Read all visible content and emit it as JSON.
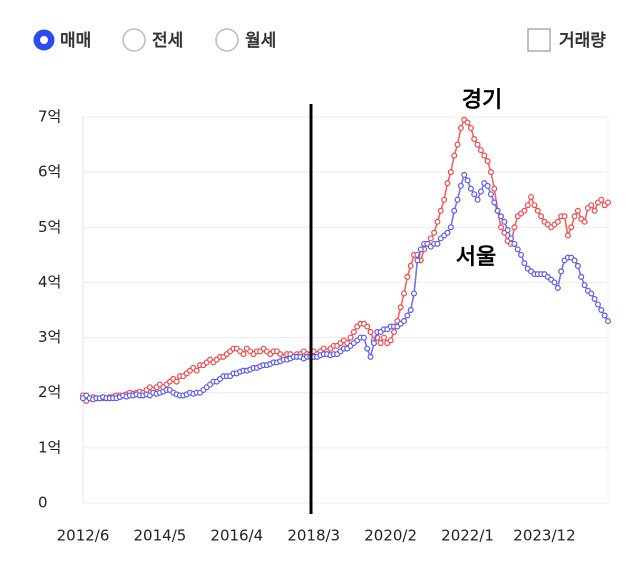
{
  "controls": {
    "radios": [
      "매매",
      "전세",
      "월세"
    ],
    "checkbox": "거래량"
  },
  "chart_data": {
    "type": "line",
    "categories": [
      "2012/6",
      null,
      null,
      null,
      null,
      null,
      null,
      null,
      null,
      null,
      null,
      null,
      null,
      null,
      null,
      null,
      null,
      null,
      null,
      null,
      null,
      null,
      null,
      "2014/5",
      null,
      null,
      null,
      null,
      null,
      null,
      null,
      null,
      null,
      null,
      null,
      null,
      null,
      null,
      null,
      null,
      null,
      null,
      null,
      null,
      null,
      null,
      "2016/4",
      null,
      null,
      null,
      null,
      null,
      null,
      null,
      null,
      null,
      null,
      null,
      null,
      null,
      null,
      null,
      null,
      null,
      null,
      null,
      null,
      null,
      null,
      "2018/3",
      null,
      null,
      null,
      null,
      null,
      null,
      null,
      null,
      null,
      null,
      null,
      null,
      null,
      null,
      null,
      null,
      null,
      null,
      null,
      null,
      null,
      null,
      "2020/2",
      null,
      null,
      null,
      null,
      null,
      null,
      null,
      null,
      null,
      null,
      null,
      null,
      null,
      null,
      null,
      null,
      null,
      null,
      null,
      null,
      null,
      null,
      "2022/1",
      null,
      null,
      null,
      null,
      null,
      null,
      null,
      null,
      null,
      null,
      null,
      null,
      null,
      null,
      null,
      null,
      null,
      null,
      null,
      null,
      null,
      null,
      "2023/12",
      null,
      null,
      null,
      null,
      null,
      null,
      null,
      null,
      null,
      null,
      null,
      null,
      null,
      null,
      null,
      null,
      null,
      null,
      null
    ],
    "series": [
      {
        "name": "경기",
        "color": "#f04848",
        "values": [
          1.95,
          1.85,
          1.9,
          1.92,
          1.9,
          1.9,
          1.9,
          1.9,
          1.92,
          1.93,
          1.95,
          1.95,
          1.95,
          1.97,
          2.0,
          1.98,
          2.0,
          2.02,
          2.0,
          2.05,
          2.1,
          2.05,
          2.1,
          2.15,
          2.1,
          2.15,
          2.2,
          2.25,
          2.2,
          2.3,
          2.3,
          2.35,
          2.4,
          2.45,
          2.4,
          2.5,
          2.5,
          2.55,
          2.6,
          2.55,
          2.6,
          2.65,
          2.65,
          2.7,
          2.75,
          2.8,
          2.8,
          2.75,
          2.7,
          2.8,
          2.75,
          2.7,
          2.75,
          2.75,
          2.8,
          2.75,
          2.7,
          2.75,
          2.75,
          2.7,
          2.65,
          2.7,
          2.7,
          2.65,
          2.7,
          2.7,
          2.75,
          2.7,
          2.7,
          2.75,
          2.7,
          2.75,
          2.8,
          2.75,
          2.8,
          2.85,
          2.85,
          2.9,
          2.95,
          2.9,
          3.0,
          3.1,
          3.2,
          3.25,
          3.25,
          3.2,
          3.1,
          2.95,
          3.0,
          2.9,
          3.0,
          2.9,
          2.95,
          3.1,
          3.3,
          3.55,
          3.8,
          4.1,
          4.3,
          4.5,
          4.5,
          4.4,
          4.6,
          4.7,
          4.8,
          4.9,
          5.1,
          5.3,
          5.5,
          5.8,
          6.0,
          6.3,
          6.5,
          6.8,
          6.95,
          6.9,
          6.8,
          6.6,
          6.5,
          6.4,
          6.3,
          6.2,
          6.0,
          5.7,
          5.3,
          5.0,
          4.9,
          4.75,
          4.7,
          5.0,
          5.2,
          5.25,
          5.3,
          5.4,
          5.55,
          5.4,
          5.3,
          5.2,
          5.1,
          5.05,
          5.0,
          5.05,
          5.1,
          5.2,
          5.2,
          4.85,
          5.0,
          5.2,
          5.3,
          5.15,
          5.1,
          5.35,
          5.4,
          5.3,
          5.45,
          5.5,
          5.4,
          5.45
        ]
      },
      {
        "name": "서울",
        "color": "#5a5af0",
        "values": [
          1.9,
          1.95,
          1.9,
          1.88,
          1.9,
          1.9,
          1.92,
          1.9,
          1.9,
          1.9,
          1.9,
          1.92,
          1.95,
          1.93,
          1.95,
          1.95,
          1.97,
          1.95,
          1.95,
          1.97,
          1.95,
          2.0,
          1.98,
          2.0,
          2.02,
          2.05,
          2.05,
          2.0,
          1.97,
          1.95,
          1.95,
          1.97,
          2.0,
          1.98,
          2.0,
          2.0,
          2.05,
          2.1,
          2.15,
          2.2,
          2.2,
          2.25,
          2.3,
          2.3,
          2.3,
          2.35,
          2.35,
          2.38,
          2.4,
          2.4,
          2.42,
          2.45,
          2.45,
          2.48,
          2.5,
          2.5,
          2.52,
          2.55,
          2.55,
          2.57,
          2.6,
          2.6,
          2.62,
          2.65,
          2.65,
          2.65,
          2.62,
          2.65,
          2.65,
          2.65,
          2.65,
          2.68,
          2.7,
          2.7,
          2.68,
          2.7,
          2.7,
          2.75,
          2.8,
          2.8,
          2.85,
          2.9,
          2.95,
          3.0,
          3.0,
          2.8,
          2.65,
          2.9,
          3.1,
          3.1,
          3.15,
          3.15,
          3.2,
          3.2,
          3.2,
          3.25,
          3.3,
          3.4,
          3.5,
          3.8,
          4.4,
          4.6,
          4.7,
          4.7,
          4.65,
          4.7,
          4.7,
          4.8,
          4.85,
          4.9,
          5.0,
          5.3,
          5.5,
          5.75,
          5.95,
          5.85,
          5.7,
          5.6,
          5.5,
          5.65,
          5.8,
          5.75,
          5.6,
          5.45,
          5.3,
          5.2,
          5.1,
          4.95,
          4.8,
          4.7,
          4.6,
          4.5,
          4.35,
          4.25,
          4.2,
          4.15,
          4.15,
          4.15,
          4.15,
          4.1,
          4.05,
          4.0,
          3.9,
          4.2,
          4.4,
          4.45,
          4.45,
          4.4,
          4.3,
          4.1,
          3.95,
          3.85,
          3.8,
          3.7,
          3.6,
          3.5,
          3.4,
          3.3
        ]
      }
    ],
    "ylim": [
      0,
      7
    ],
    "yticks": [
      0,
      {
        "value": 1,
        "label": "1억"
      },
      {
        "value": 2,
        "label": "2억"
      },
      {
        "value": 3,
        "label": "3억"
      },
      {
        "value": 4,
        "label": "4억"
      },
      {
        "value": 5,
        "label": "5억"
      },
      {
        "value": 6,
        "label": "6억"
      },
      {
        "value": 7,
        "label": "7억"
      }
    ],
    "grid": true
  }
}
